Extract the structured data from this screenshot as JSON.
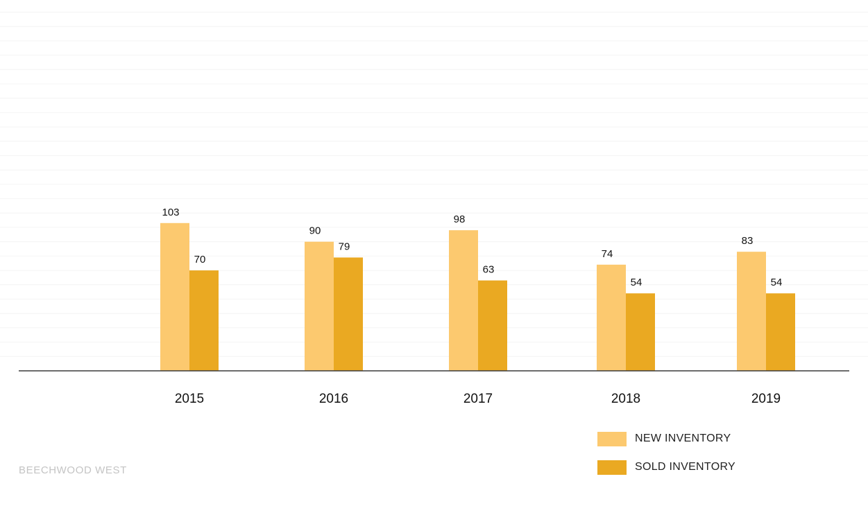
{
  "chart_data": {
    "type": "bar",
    "categories": [
      "2015",
      "2016",
      "2017",
      "2018",
      "2019"
    ],
    "series": [
      {
        "name": "NEW INVENTORY",
        "values": [
          103,
          90,
          98,
          74,
          83
        ],
        "color": "#fcc96f"
      },
      {
        "name": "SOLD INVENTORY",
        "values": [
          70,
          79,
          63,
          54,
          54
        ],
        "color": "#eaa922"
      }
    ],
    "ylim": [
      0,
      250
    ],
    "grid": true,
    "legend_position": "bottom-right"
  },
  "footer": {
    "brand": "BEECHWOOD WEST"
  }
}
